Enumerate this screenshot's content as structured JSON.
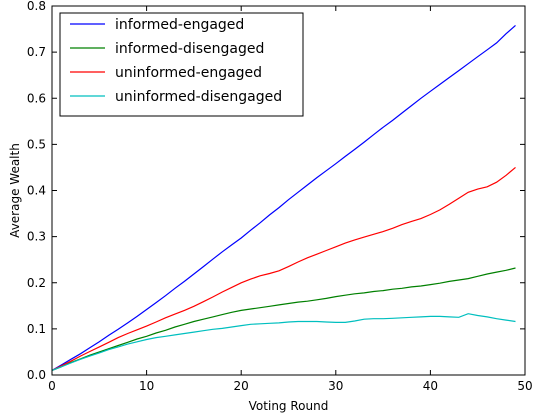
{
  "chart_data": {
    "type": "line",
    "title": "",
    "xlabel": "Voting Round",
    "ylabel": "Average Wealth",
    "xlim": [
      0,
      50
    ],
    "ylim": [
      0.0,
      0.8
    ],
    "xticks": [
      "0",
      "10",
      "20",
      "30",
      "40",
      "50"
    ],
    "yticks": [
      "0.0",
      "0.1",
      "0.2",
      "0.3",
      "0.4",
      "0.5",
      "0.6",
      "0.7",
      "0.8"
    ],
    "grid": false,
    "legend_position": "top-left",
    "x": [
      0,
      1,
      2,
      3,
      4,
      5,
      6,
      7,
      8,
      9,
      10,
      11,
      12,
      13,
      14,
      15,
      16,
      17,
      18,
      19,
      20,
      21,
      22,
      23,
      24,
      25,
      26,
      27,
      28,
      29,
      30,
      31,
      32,
      33,
      34,
      35,
      36,
      37,
      38,
      39,
      40,
      41,
      42,
      43,
      44,
      45,
      46,
      47,
      48,
      49
    ],
    "series": [
      {
        "name": "informed-engaged",
        "color": "#0000ff",
        "values": [
          0.01,
          0.022,
          0.034,
          0.046,
          0.059,
          0.072,
          0.086,
          0.099,
          0.113,
          0.127,
          0.142,
          0.157,
          0.172,
          0.188,
          0.203,
          0.219,
          0.235,
          0.251,
          0.267,
          0.282,
          0.297,
          0.314,
          0.33,
          0.347,
          0.363,
          0.38,
          0.396,
          0.412,
          0.428,
          0.443,
          0.458,
          0.474,
          0.489,
          0.505,
          0.521,
          0.537,
          0.552,
          0.568,
          0.584,
          0.6,
          0.615,
          0.63,
          0.645,
          0.66,
          0.675,
          0.69,
          0.705,
          0.72,
          0.74,
          0.758
        ]
      },
      {
        "name": "informed-disengaged",
        "color": "#008000",
        "values": [
          0.01,
          0.018,
          0.027,
          0.035,
          0.043,
          0.05,
          0.057,
          0.064,
          0.071,
          0.078,
          0.084,
          0.091,
          0.097,
          0.104,
          0.11,
          0.116,
          0.121,
          0.126,
          0.131,
          0.136,
          0.14,
          0.143,
          0.146,
          0.149,
          0.152,
          0.155,
          0.158,
          0.16,
          0.163,
          0.166,
          0.17,
          0.173,
          0.176,
          0.178,
          0.181,
          0.183,
          0.186,
          0.188,
          0.191,
          0.193,
          0.196,
          0.199,
          0.203,
          0.206,
          0.209,
          0.214,
          0.219,
          0.223,
          0.227,
          0.232
        ]
      },
      {
        "name": "uninformed-engaged",
        "color": "#ff0000",
        "values": [
          0.01,
          0.02,
          0.03,
          0.041,
          0.051,
          0.061,
          0.071,
          0.081,
          0.09,
          0.098,
          0.106,
          0.115,
          0.124,
          0.132,
          0.14,
          0.149,
          0.159,
          0.169,
          0.18,
          0.19,
          0.2,
          0.208,
          0.215,
          0.22,
          0.226,
          0.235,
          0.245,
          0.254,
          0.262,
          0.27,
          0.278,
          0.286,
          0.293,
          0.299,
          0.305,
          0.311,
          0.318,
          0.326,
          0.333,
          0.339,
          0.348,
          0.358,
          0.37,
          0.383,
          0.396,
          0.403,
          0.408,
          0.418,
          0.433,
          0.45
        ]
      },
      {
        "name": "uninformed-disengaged",
        "color": "#00bfbf",
        "values": [
          0.01,
          0.018,
          0.026,
          0.034,
          0.041,
          0.048,
          0.055,
          0.061,
          0.067,
          0.072,
          0.077,
          0.081,
          0.084,
          0.087,
          0.09,
          0.093,
          0.096,
          0.099,
          0.101,
          0.104,
          0.107,
          0.11,
          0.111,
          0.112,
          0.113,
          0.115,
          0.116,
          0.116,
          0.116,
          0.115,
          0.114,
          0.114,
          0.117,
          0.121,
          0.122,
          0.122,
          0.123,
          0.124,
          0.125,
          0.126,
          0.127,
          0.127,
          0.126,
          0.125,
          0.133,
          0.129,
          0.126,
          0.122,
          0.119,
          0.116
        ]
      }
    ]
  }
}
